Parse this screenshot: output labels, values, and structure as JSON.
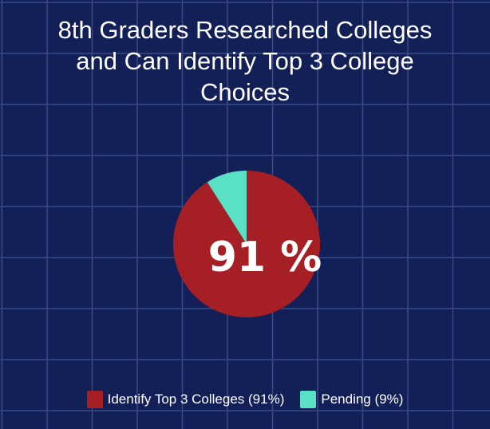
{
  "chart_data": {
    "type": "pie",
    "title_lines": [
      "8th Graders Researched Colleges",
      "and Can Identify Top 3 College",
      "Choices"
    ],
    "slices": [
      {
        "label": "Identify Top 3 Colleges",
        "value": 91,
        "color": "#a61f24",
        "legend": "Identify Top 3 Colleges (91%)"
      },
      {
        "label": "Pending",
        "value": 9,
        "color": "#5ae0c4",
        "legend": "Pending (9%)"
      }
    ],
    "center_label": "91 %",
    "legend_position": "bottom",
    "background": "#132058",
    "grid_color": "#3b4a85"
  }
}
